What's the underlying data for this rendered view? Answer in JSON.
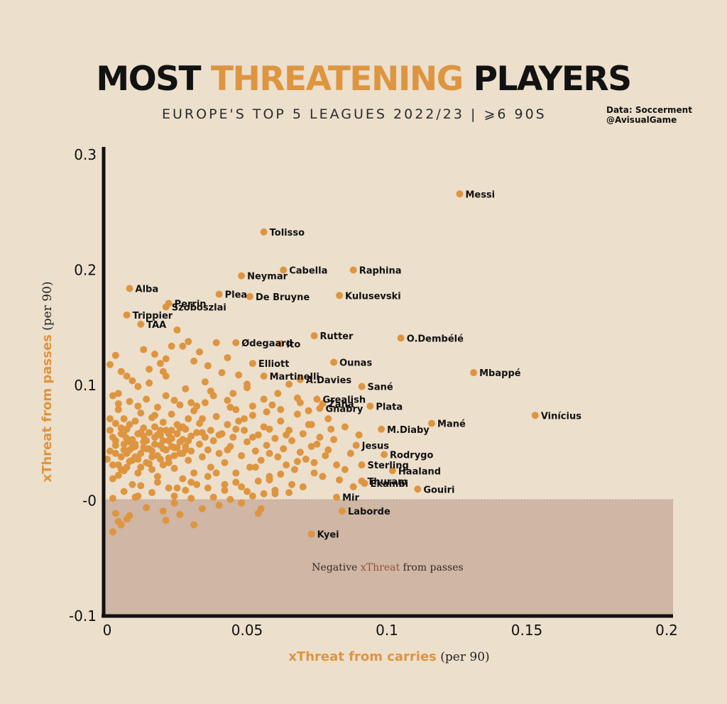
{
  "title": {
    "part1": "MOST ",
    "accent": "THREATENING",
    "part2": " PLAYERS"
  },
  "subtitle": "EUROPE'S TOP 5 LEAGUES 2022/23  |  ⩾6 90S",
  "credits": {
    "line1": "Data: Soccerment",
    "line2": "@AvisualGame"
  },
  "colors": {
    "background": "#ecdfcc",
    "points": "#de9540",
    "negative_region": "#cfb6a5",
    "axis": "#111111",
    "accent_text": "#de9540",
    "negative_accent": "#9b4b36"
  },
  "negative_region": {
    "label_before": "Negative ",
    "label_accent": "xThreat",
    "label_after": " from passes"
  },
  "chart_data": {
    "type": "scatter",
    "xlabel": {
      "accent": "xThreat from carries",
      "unit": " (per 90)"
    },
    "ylabel": {
      "accent": "xThreat from passes",
      "unit": " (per 90)"
    },
    "xlim": [
      0,
      0.2
    ],
    "ylim": [
      -0.1,
      0.3
    ],
    "x_ticks": [
      "0",
      "0.05",
      "0.1",
      "0.15",
      "0.2"
    ],
    "y_ticks": [
      "0.3",
      "0.2",
      "0.1",
      "-0",
      "-0.1"
    ],
    "labeled_points": [
      {
        "name": "Messi",
        "x": 0.126,
        "y": 0.266
      },
      {
        "name": "Tolisso",
        "x": 0.056,
        "y": 0.233
      },
      {
        "name": "Neymar",
        "x": 0.048,
        "y": 0.195
      },
      {
        "name": "Cabella",
        "x": 0.063,
        "y": 0.2
      },
      {
        "name": "Raphina",
        "x": 0.088,
        "y": 0.2
      },
      {
        "name": "Alba",
        "x": 0.008,
        "y": 0.184
      },
      {
        "name": "Perrin",
        "x": 0.022,
        "y": 0.171
      },
      {
        "name": "Plea",
        "x": 0.04,
        "y": 0.179
      },
      {
        "name": "De Bruyne",
        "x": 0.051,
        "y": 0.177
      },
      {
        "name": "Kulusevski",
        "x": 0.083,
        "y": 0.178
      },
      {
        "name": "Trippier",
        "x": 0.007,
        "y": 0.161
      },
      {
        "name": "Szoboszlai",
        "x": 0.021,
        "y": 0.168
      },
      {
        "name": "TAA",
        "x": 0.012,
        "y": 0.153
      },
      {
        "name": "Ødegaard",
        "x": 0.046,
        "y": 0.137
      },
      {
        "name": "Ito",
        "x": 0.062,
        "y": 0.136
      },
      {
        "name": "Rutter",
        "x": 0.074,
        "y": 0.143
      },
      {
        "name": "O.Dembélé",
        "x": 0.105,
        "y": 0.141
      },
      {
        "name": "Elliott",
        "x": 0.052,
        "y": 0.119
      },
      {
        "name": "Ounas",
        "x": 0.081,
        "y": 0.12
      },
      {
        "name": "Mbappé",
        "x": 0.131,
        "y": 0.111
      },
      {
        "name": "Martinelli",
        "x": 0.056,
        "y": 0.108
      },
      {
        "name": "A.Davies",
        "x": 0.069,
        "y": 0.105
      },
      {
        "name": "Sané",
        "x": 0.091,
        "y": 0.099
      },
      {
        "name": "Grealish",
        "x": 0.075,
        "y": 0.088
      },
      {
        "name": "Zaha",
        "x": 0.077,
        "y": 0.084
      },
      {
        "name": "Gnabry",
        "x": 0.076,
        "y": 0.08
      },
      {
        "name": "Plata",
        "x": 0.094,
        "y": 0.082
      },
      {
        "name": "Vinícius",
        "x": 0.153,
        "y": 0.074
      },
      {
        "name": "Mané",
        "x": 0.116,
        "y": 0.067
      },
      {
        "name": "M.Diaby",
        "x": 0.098,
        "y": 0.062
      },
      {
        "name": "Jesus",
        "x": 0.089,
        "y": 0.048
      },
      {
        "name": "Rodrygo",
        "x": 0.099,
        "y": 0.04
      },
      {
        "name": "Sterling",
        "x": 0.091,
        "y": 0.031
      },
      {
        "name": "Haaland",
        "x": 0.102,
        "y": 0.026
      },
      {
        "name": "Thuram",
        "x": 0.091,
        "y": 0.017
      },
      {
        "name": "Ekambi",
        "x": 0.092,
        "y": 0.015
      },
      {
        "name": "Gouiri",
        "x": 0.111,
        "y": 0.01
      },
      {
        "name": "Mir",
        "x": 0.082,
        "y": 0.003
      },
      {
        "name": "Laborde",
        "x": 0.084,
        "y": -0.009
      },
      {
        "name": "Kyei",
        "x": 0.073,
        "y": -0.029
      }
    ],
    "unlabeled_points": [
      [
        0.001,
        0.043
      ],
      [
        0.002,
        0.055
      ],
      [
        0.002,
        0.031
      ],
      [
        0.003,
        0.067
      ],
      [
        0.003,
        0.048
      ],
      [
        0.004,
        0.022
      ],
      [
        0.004,
        0.079
      ],
      [
        0.005,
        0.058
      ],
      [
        0.005,
        0.038
      ],
      [
        0.006,
        0.049
      ],
      [
        0.006,
        0.071
      ],
      [
        0.007,
        0.029
      ],
      [
        0.007,
        0.062
      ],
      [
        0.008,
        0.044
      ],
      [
        0.008,
        0.086
      ],
      [
        0.009,
        0.053
      ],
      [
        0.009,
        0.035
      ],
      [
        0.01,
        0.069
      ],
      [
        0.01,
        0.047
      ],
      [
        0.011,
        0.058
      ],
      [
        0.011,
        0.024
      ],
      [
        0.012,
        0.076
      ],
      [
        0.012,
        0.041
      ],
      [
        0.013,
        0.063
      ],
      [
        0.013,
        0.051
      ],
      [
        0.014,
        0.088
      ],
      [
        0.014,
        0.033
      ],
      [
        0.015,
        0.059
      ],
      [
        0.015,
        0.045
      ],
      [
        0.016,
        0.072
      ],
      [
        0.016,
        0.027
      ],
      [
        0.017,
        0.055
      ],
      [
        0.017,
        0.064
      ],
      [
        0.018,
        0.039
      ],
      [
        0.018,
        0.081
      ],
      [
        0.019,
        0.048
      ],
      [
        0.019,
        0.057
      ],
      [
        0.02,
        0.031
      ],
      [
        0.02,
        0.068
      ],
      [
        0.021,
        0.044
      ],
      [
        0.021,
        0.091
      ],
      [
        0.022,
        0.052
      ],
      [
        0.022,
        0.037
      ],
      [
        0.023,
        0.061
      ],
      [
        0.023,
        0.075
      ],
      [
        0.024,
        0.046
      ],
      [
        0.024,
        0.028
      ],
      [
        0.025,
        0.058
      ],
      [
        0.025,
        0.066
      ],
      [
        0.026,
        0.041
      ],
      [
        0.026,
        0.083
      ],
      [
        0.027,
        0.053
      ],
      [
        0.027,
        0.019
      ],
      [
        0.028,
        0.062
      ],
      [
        0.028,
        0.047
      ],
      [
        0.029,
        0.071
      ],
      [
        0.029,
        0.035
      ],
      [
        0.03,
        0.056
      ],
      [
        0.03,
        0.043
      ],
      [
        0.031,
        0.078
      ],
      [
        0.031,
        0.024
      ],
      [
        0.032,
        0.059
      ],
      [
        0.033,
        0.049
      ],
      [
        0.033,
        0.067
      ],
      [
        0.034,
        0.038
      ],
      [
        0.035,
        0.055
      ],
      [
        0.035,
        0.085
      ],
      [
        0.036,
        0.044
      ],
      [
        0.037,
        0.061
      ],
      [
        0.037,
        0.029
      ],
      [
        0.038,
        0.052
      ],
      [
        0.039,
        0.073
      ],
      [
        0.04,
        0.041
      ],
      [
        0.041,
        0.058
      ],
      [
        0.042,
        0.033
      ],
      [
        0.043,
        0.066
      ],
      [
        0.044,
        0.047
      ],
      [
        0.045,
        0.055
      ],
      [
        0.046,
        0.024
      ],
      [
        0.047,
        0.069
      ],
      [
        0.048,
        0.039
      ],
      [
        0.049,
        0.061
      ],
      [
        0.05,
        0.051
      ],
      [
        0.051,
        0.029
      ],
      [
        0.052,
        0.074
      ],
      [
        0.053,
        0.043
      ],
      [
        0.054,
        0.057
      ],
      [
        0.055,
        0.035
      ],
      [
        0.056,
        0.064
      ],
      [
        0.057,
        0.048
      ],
      [
        0.058,
        0.021
      ],
      [
        0.059,
        0.083
      ],
      [
        0.06,
        0.054
      ],
      [
        0.061,
        0.038
      ],
      [
        0.062,
        0.069
      ],
      [
        0.063,
        0.045
      ],
      [
        0.064,
        0.031
      ],
      [
        0.065,
        0.061
      ],
      [
        0.066,
        0.052
      ],
      [
        0.067,
        0.027
      ],
      [
        0.068,
        0.075
      ],
      [
        0.069,
        0.042
      ],
      [
        0.07,
        0.058
      ],
      [
        0.071,
        0.036
      ],
      [
        0.072,
        0.066
      ],
      [
        0.073,
        0.047
      ],
      [
        0.074,
        0.024
      ],
      [
        0.076,
        0.055
      ],
      [
        0.078,
        0.039
      ],
      [
        0.08,
        0.062
      ],
      [
        0.0,
        0.036
      ],
      [
        0.001,
        0.061
      ],
      [
        0.002,
        0.019
      ],
      [
        0.003,
        0.052
      ],
      [
        0.004,
        0.093
      ],
      [
        0.005,
        0.027
      ],
      [
        0.006,
        0.057
      ],
      [
        0.007,
        0.041
      ],
      [
        0.008,
        0.066
      ],
      [
        0.009,
        0.014
      ],
      [
        0.01,
        0.049
      ],
      [
        0.011,
        0.082
      ],
      [
        0.012,
        0.029
      ],
      [
        0.013,
        0.056
      ],
      [
        0.014,
        0.045
      ],
      [
        0.015,
        0.102
      ],
      [
        0.016,
        0.038
      ],
      [
        0.017,
        0.074
      ],
      [
        0.018,
        0.021
      ],
      [
        0.019,
        0.061
      ],
      [
        0.02,
        0.052
      ],
      [
        0.021,
        0.108
      ],
      [
        0.022,
        0.033
      ],
      [
        0.023,
        0.047
      ],
      [
        0.024,
        0.087
      ],
      [
        0.025,
        0.011
      ],
      [
        0.026,
        0.063
      ],
      [
        0.027,
        0.041
      ],
      [
        0.028,
        0.097
      ],
      [
        0.029,
        0.052
      ],
      [
        0.03,
        0.016
      ],
      [
        0.032,
        0.082
      ],
      [
        0.034,
        0.059
      ],
      [
        0.036,
        0.021
      ],
      [
        0.038,
        0.091
      ],
      [
        0.04,
        0.057
      ],
      [
        0.042,
        0.014
      ],
      [
        0.044,
        0.081
      ],
      [
        0.046,
        0.062
      ],
      [
        0.048,
        0.012
      ],
      [
        0.05,
        0.098
      ],
      [
        0.052,
        0.055
      ],
      [
        0.054,
        0.017
      ],
      [
        0.056,
        0.088
      ],
      [
        0.058,
        0.062
      ],
      [
        0.06,
        0.009
      ],
      [
        0.062,
        0.079
      ],
      [
        0.064,
        0.057
      ],
      [
        0.066,
        0.014
      ],
      [
        0.068,
        0.089
      ],
      [
        0.07,
        0.012
      ],
      [
        0.072,
        0.078
      ],
      [
        0.074,
        0.033
      ],
      [
        0.077,
        0.021
      ],
      [
        0.079,
        0.071
      ],
      [
        0.081,
        0.053
      ],
      [
        0.083,
        0.018
      ],
      [
        0.085,
        0.064
      ],
      [
        0.087,
        0.041
      ],
      [
        0.09,
        0.057
      ],
      [
        0.002,
        0.002
      ],
      [
        0.004,
        -0.018
      ],
      [
        0.006,
        0.008
      ],
      [
        0.008,
        -0.013
      ],
      [
        0.01,
        0.003
      ],
      [
        0.012,
        0.013
      ],
      [
        0.014,
        -0.006
      ],
      [
        0.016,
        0.007
      ],
      [
        0.018,
        0.016
      ],
      [
        0.02,
        -0.009
      ],
      [
        0.022,
        0.011
      ],
      [
        0.024,
        0.004
      ],
      [
        0.026,
        -0.012
      ],
      [
        0.028,
        0.009
      ],
      [
        0.03,
        0.002
      ],
      [
        0.032,
        0.014
      ],
      [
        0.034,
        -0.007
      ],
      [
        0.036,
        0.011
      ],
      [
        0.038,
        0.003
      ],
      [
        0.04,
        -0.004
      ],
      [
        0.042,
        0.009
      ],
      [
        0.044,
        0.001
      ],
      [
        0.046,
        0.016
      ],
      [
        0.048,
        -0.002
      ],
      [
        0.05,
        0.008
      ],
      [
        0.052,
        0.004
      ],
      [
        0.054,
        -0.011
      ],
      [
        0.056,
        0.006
      ],
      [
        0.058,
        0.018
      ],
      [
        0.06,
        0.006
      ],
      [
        0.002,
        -0.027
      ],
      [
        0.005,
        -0.021
      ],
      [
        0.007,
        -0.016
      ],
      [
        0.021,
        -0.017
      ],
      [
        0.031,
        -0.021
      ],
      [
        0.003,
        -0.011
      ],
      [
        0.055,
        -0.007
      ],
      [
        0.024,
        -0.002
      ],
      [
        0.011,
        0.004
      ],
      [
        0.065,
        0.007
      ],
      [
        0.001,
        0.118
      ],
      [
        0.003,
        0.126
      ],
      [
        0.005,
        0.112
      ],
      [
        0.009,
        0.104
      ],
      [
        0.013,
        0.131
      ],
      [
        0.017,
        0.127
      ],
      [
        0.019,
        0.119
      ],
      [
        0.023,
        0.134
      ],
      [
        0.025,
        0.148
      ],
      [
        0.027,
        0.134
      ],
      [
        0.029,
        0.138
      ],
      [
        0.031,
        0.121
      ],
      [
        0.033,
        0.129
      ],
      [
        0.036,
        0.117
      ],
      [
        0.039,
        0.137
      ],
      [
        0.043,
        0.124
      ],
      [
        0.047,
        0.109
      ],
      [
        0.05,
        0.101
      ],
      [
        0.045,
        0.093
      ],
      [
        0.041,
        0.111
      ],
      [
        0.035,
        0.103
      ],
      [
        0.021,
        0.123
      ],
      [
        0.015,
        0.114
      ],
      [
        0.011,
        0.099
      ],
      [
        0.007,
        0.108
      ],
      [
        0.002,
        0.091
      ],
      [
        0.02,
        0.112
      ],
      [
        0.03,
        0.085
      ],
      [
        0.037,
        0.095
      ],
      [
        0.043,
        0.087
      ],
      [
        0.052,
        0.082
      ],
      [
        0.057,
        0.077
      ],
      [
        0.061,
        0.093
      ],
      [
        0.065,
        0.101
      ],
      [
        0.069,
        0.085
      ],
      [
        0.073,
        0.066
      ],
      [
        0.075,
        0.049
      ],
      [
        0.079,
        0.044
      ],
      [
        0.082,
        0.031
      ],
      [
        0.085,
        0.027
      ],
      [
        0.088,
        0.012
      ],
      [
        0.068,
        0.034
      ],
      [
        0.062,
        0.023
      ],
      [
        0.058,
        0.041
      ],
      [
        0.053,
        0.029
      ],
      [
        0.049,
        0.071
      ],
      [
        0.046,
        0.079
      ],
      [
        0.043,
        0.044
      ],
      [
        0.039,
        0.024
      ],
      [
        0.034,
        0.071
      ],
      [
        0.004,
        0.031
      ],
      [
        0.006,
        0.044
      ],
      [
        0.008,
        0.051
      ],
      [
        0.01,
        0.038
      ],
      [
        0.012,
        0.059
      ],
      [
        0.014,
        0.052
      ],
      [
        0.016,
        0.043
      ],
      [
        0.018,
        0.057
      ],
      [
        0.02,
        0.045
      ],
      [
        0.022,
        0.058
      ],
      [
        0.024,
        0.039
      ],
      [
        0.026,
        0.051
      ],
      [
        0.028,
        0.044
      ],
      [
        0.003,
        0.041
      ],
      [
        0.005,
        0.063
      ],
      [
        0.007,
        0.054
      ],
      [
        0.009,
        0.046
      ],
      [
        0.011,
        0.036
      ],
      [
        0.013,
        0.046
      ],
      [
        0.015,
        0.032
      ],
      [
        0.017,
        0.049
      ],
      [
        0.019,
        0.036
      ],
      [
        0.021,
        0.061
      ],
      [
        0.023,
        0.054
      ],
      [
        0.025,
        0.046
      ],
      [
        0.027,
        0.064
      ],
      [
        0.001,
        0.071
      ],
      [
        0.004,
        0.084
      ],
      [
        0.006,
        0.026
      ],
      [
        0.008,
        0.034
      ]
    ]
  }
}
